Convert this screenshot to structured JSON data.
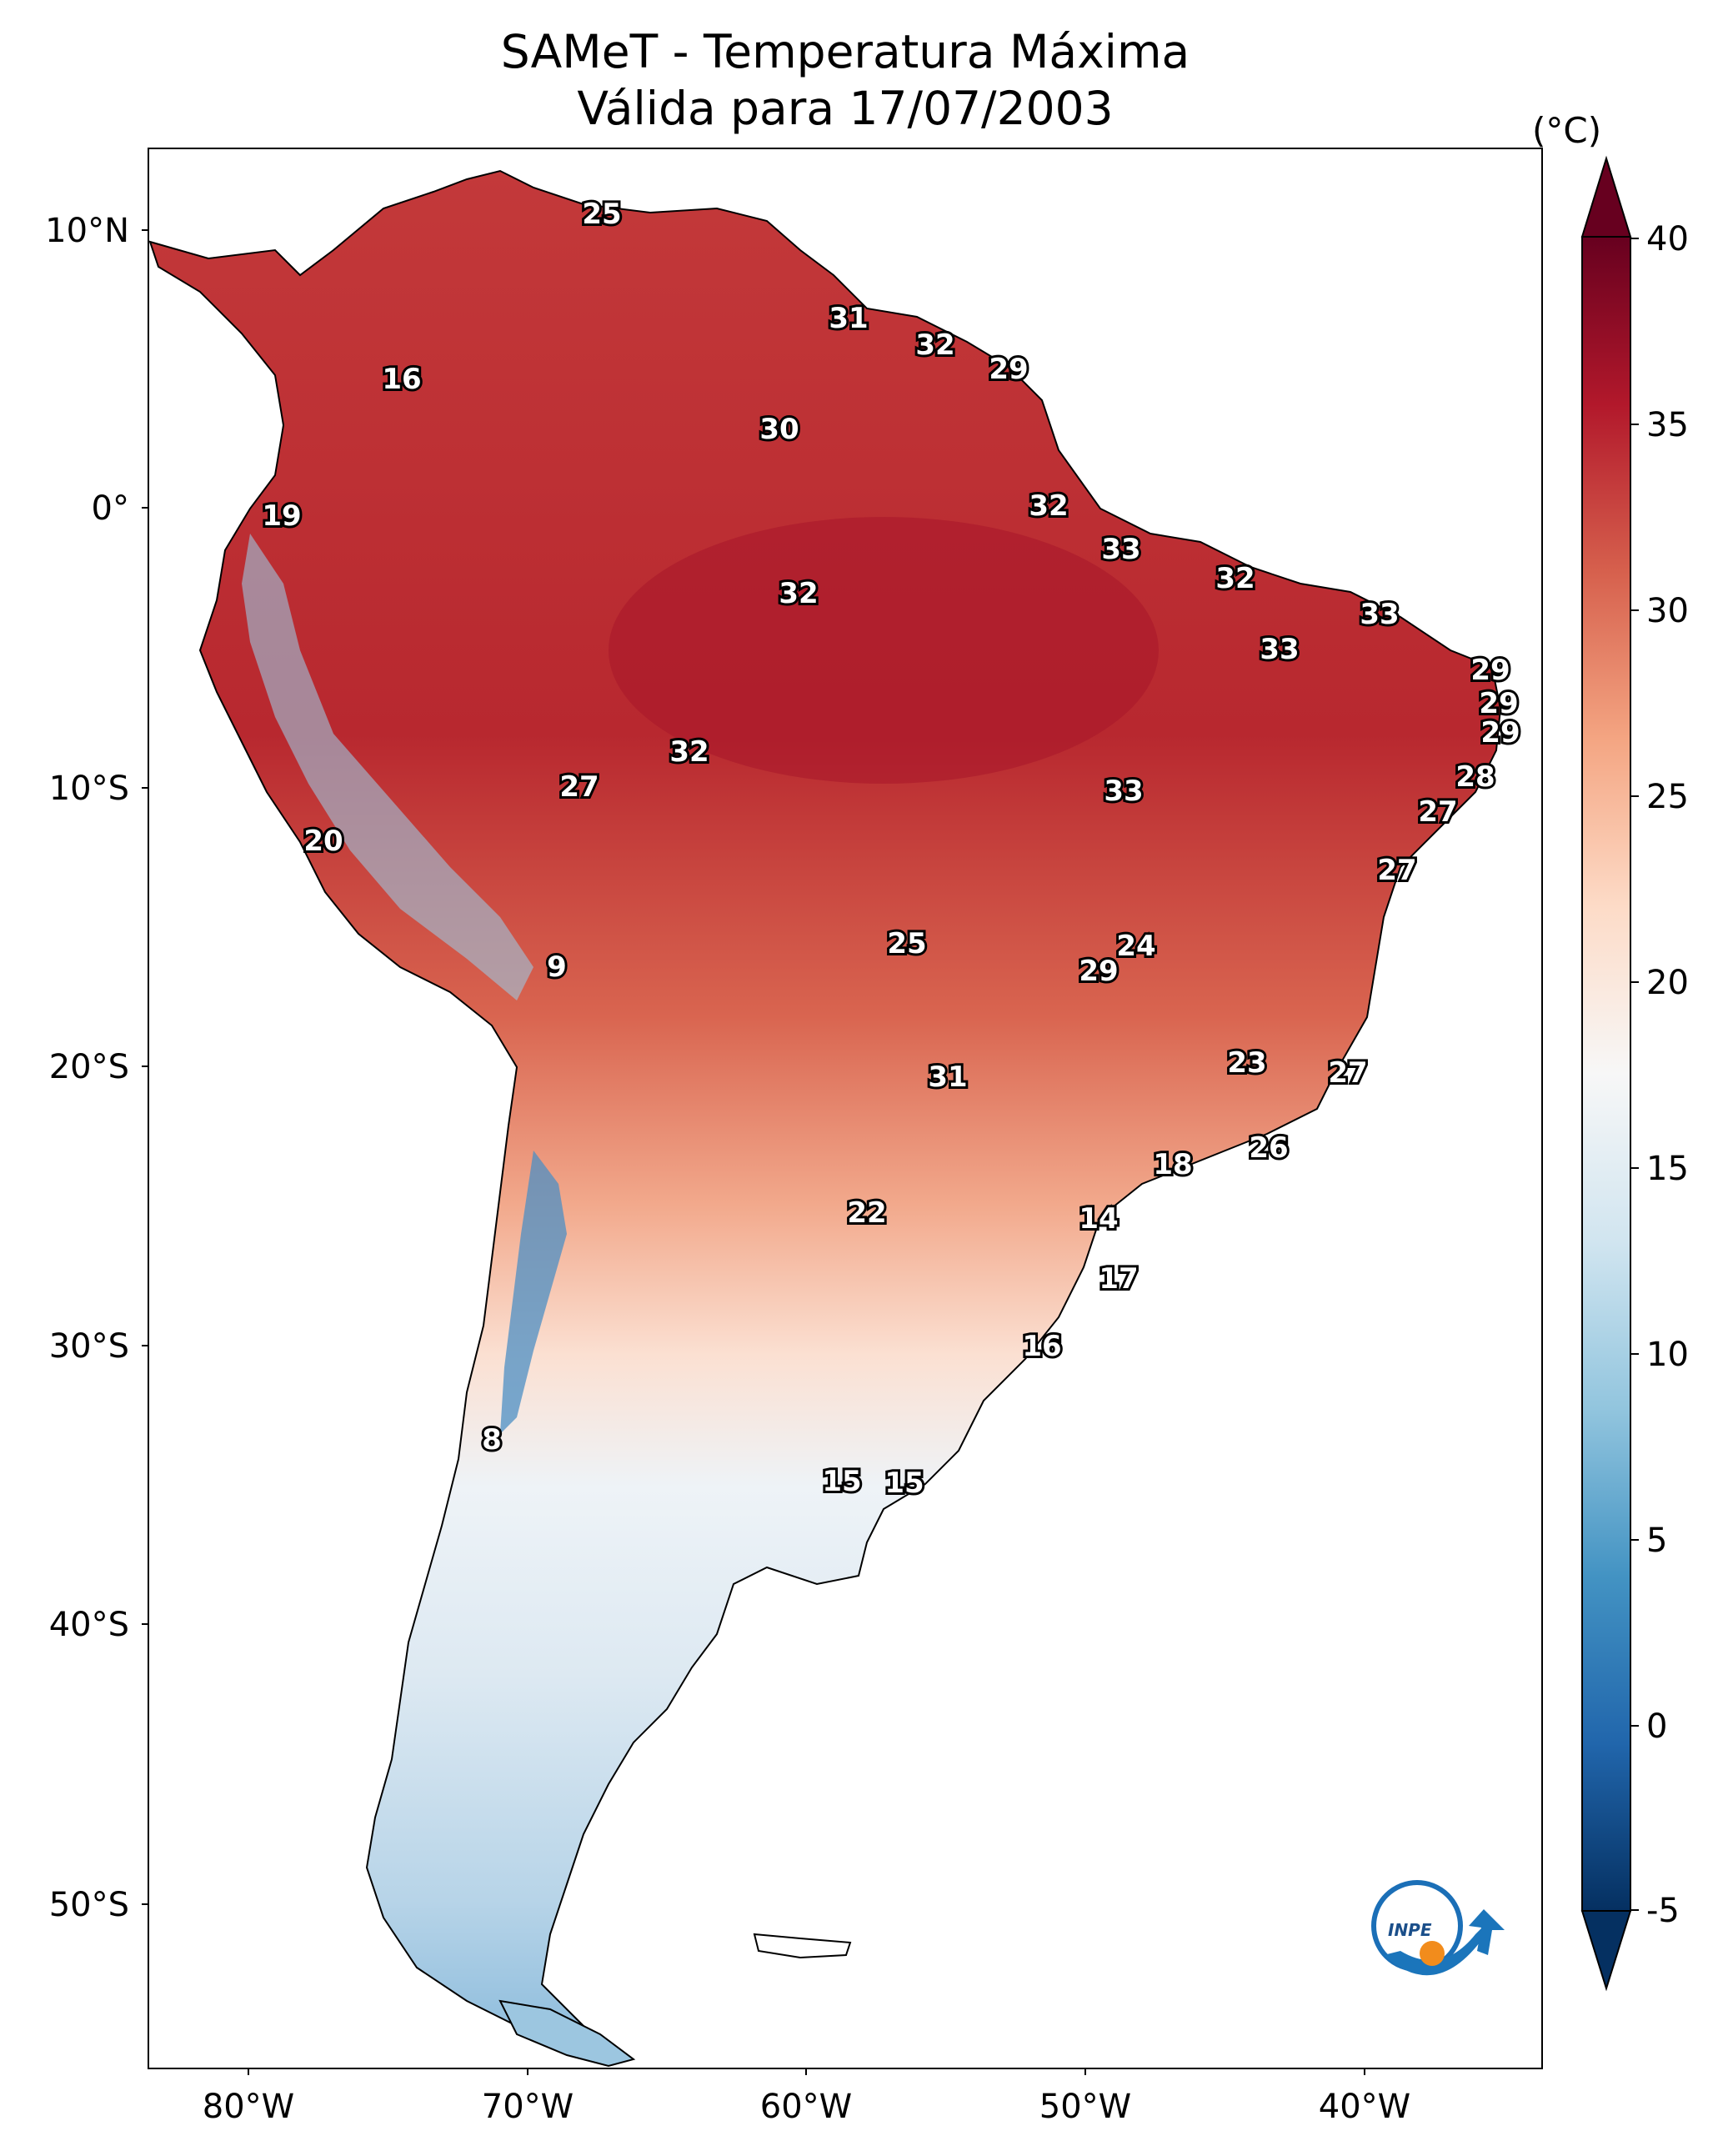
{
  "title": {
    "line1": "SAMeT - Temperatura Máxima",
    "line2": "Válida para 17/07/2003"
  },
  "colorbar": {
    "unit": "(°C)",
    "min": -5,
    "max": 40,
    "ticks": [
      "40",
      "35",
      "30",
      "25",
      "20",
      "15",
      "10",
      "5",
      "0",
      "-5"
    ],
    "colors": [
      "#053061",
      "#2166ac",
      "#4393c3",
      "#92c5de",
      "#d1e5f0",
      "#f7f7f7",
      "#fddbc7",
      "#f4a582",
      "#d6604d",
      "#b2182b",
      "#67001f"
    ]
  },
  "axes": {
    "lat_labels": [
      "10°N",
      "0°",
      "10°S",
      "20°S",
      "30°S",
      "40°S",
      "50°S"
    ],
    "lon_labels": [
      "80°W",
      "70°W",
      "60°W",
      "50°W",
      "40°W"
    ]
  },
  "map_labels": [
    "25",
    "16",
    "31",
    "32",
    "29",
    "30",
    "19",
    "32",
    "32",
    "33",
    "32",
    "33",
    "33",
    "29",
    "29",
    "29",
    "32",
    "27",
    "33",
    "28",
    "27",
    "20",
    "27",
    "25",
    "24",
    "29",
    "9",
    "23",
    "27",
    "31",
    "26",
    "18",
    "22",
    "14",
    "17",
    "16",
    "8",
    "15",
    "15"
  ],
  "logo": {
    "text": "INPE"
  }
}
